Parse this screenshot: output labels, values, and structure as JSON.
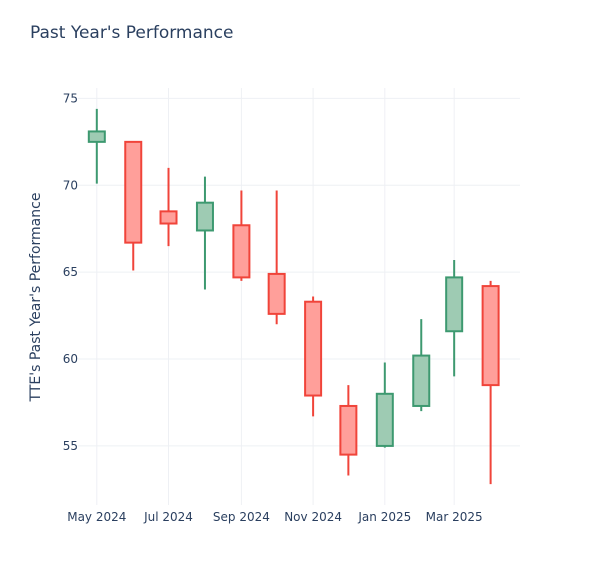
{
  "chart_data": {
    "type": "candlestick",
    "title": "Past Year's Performance",
    "xlabel": "",
    "ylabel": "TTE's Past Year's Performance",
    "ylim": [
      51.6,
      75.6
    ],
    "xlim": [
      "2024-04-15",
      "2025-04-26"
    ],
    "grid": true,
    "legend": "none",
    "colors": {
      "increasing_line": "#3d9970",
      "increasing_fill": "#9ecbb3",
      "decreasing_line": "#f0443a",
      "decreasing_fill": "#ff9f9a",
      "text": "#2a3f5f",
      "grid": "#eef0f4"
    },
    "y_ticks": [
      55,
      60,
      65,
      70,
      75
    ],
    "x_ticks": [
      {
        "date": "2024-05-01",
        "label": "May 2024"
      },
      {
        "date": "2024-07-01",
        "label": "Jul 2024"
      },
      {
        "date": "2024-09-01",
        "label": "Sep 2024"
      },
      {
        "date": "2024-11-01",
        "label": "Nov 2024"
      },
      {
        "date": "2025-01-01",
        "label": "Jan 2025"
      },
      {
        "date": "2025-03-01",
        "label": "Mar 2025"
      }
    ],
    "candles": [
      {
        "date": "2024-05-01",
        "open": 72.5,
        "high": 74.4,
        "low": 70.1,
        "close": 73.1
      },
      {
        "date": "2024-06-01",
        "open": 72.5,
        "high": 72.5,
        "low": 65.1,
        "close": 66.7
      },
      {
        "date": "2024-07-01",
        "open": 68.5,
        "high": 71.0,
        "low": 66.5,
        "close": 67.8
      },
      {
        "date": "2024-08-01",
        "open": 67.4,
        "high": 70.5,
        "low": 64.0,
        "close": 69.0
      },
      {
        "date": "2024-09-01",
        "open": 67.7,
        "high": 69.7,
        "low": 64.5,
        "close": 64.7
      },
      {
        "date": "2024-10-01",
        "open": 64.9,
        "high": 69.7,
        "low": 62.0,
        "close": 62.6
      },
      {
        "date": "2024-11-01",
        "open": 63.3,
        "high": 63.6,
        "low": 56.7,
        "close": 57.9
      },
      {
        "date": "2024-12-01",
        "open": 57.3,
        "high": 58.5,
        "low": 53.3,
        "close": 54.5
      },
      {
        "date": "2025-01-01",
        "open": 55.0,
        "high": 59.8,
        "low": 54.9,
        "close": 58.0
      },
      {
        "date": "2025-02-01",
        "open": 57.3,
        "high": 62.3,
        "low": 57.0,
        "close": 60.2
      },
      {
        "date": "2025-03-01",
        "open": 61.6,
        "high": 65.7,
        "low": 59.0,
        "close": 64.7
      },
      {
        "date": "2025-04-01",
        "open": 64.2,
        "high": 64.5,
        "low": 52.8,
        "close": 58.5
      }
    ]
  }
}
